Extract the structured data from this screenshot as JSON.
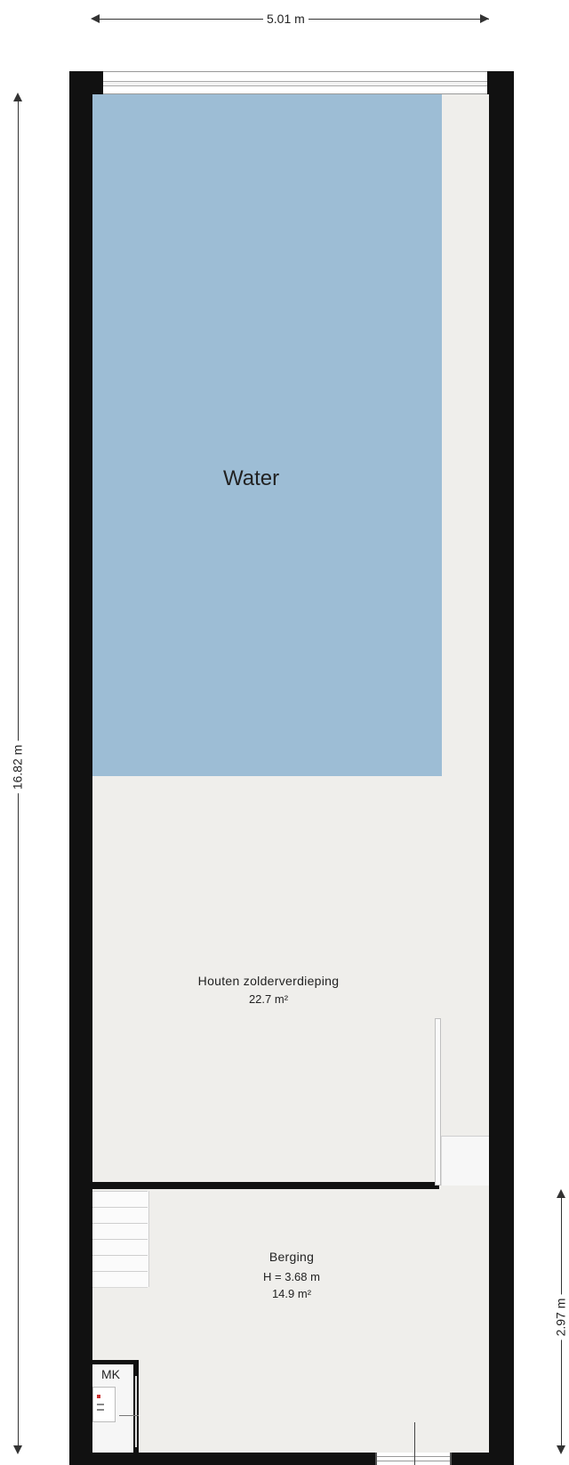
{
  "dimensions": {
    "width_label": "5.01 m",
    "height_label": "16.82 m",
    "right_label": "2.97 m"
  },
  "rooms": {
    "water": {
      "name": "Water"
    },
    "attic": {
      "name": "Houten zolderverdieping",
      "area": "22.7 m²"
    },
    "storage": {
      "name": "Berging",
      "height": "H = 3.68 m",
      "area": "14.9 m²"
    },
    "meter": {
      "label": "MK"
    }
  },
  "colors": {
    "wall": "#111111",
    "floor": "#efeeeb",
    "water": "#9dbdd5"
  }
}
